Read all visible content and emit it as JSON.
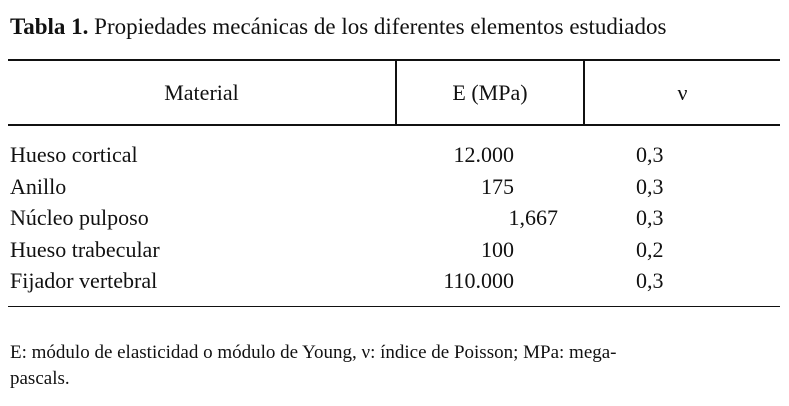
{
  "caption": {
    "label": "Tabla 1.",
    "text": "Propiedades mecánicas de los diferentes elementos estudiados"
  },
  "table": {
    "headers": [
      "Material",
      "E (MPa)",
      "ν"
    ],
    "rows": [
      {
        "material": "Hueso cortical",
        "e": "12.000",
        "nu": "0,3"
      },
      {
        "material": "Anillo",
        "e": "175",
        "nu": "0,3"
      },
      {
        "material": "Núcleo pulposo",
        "e": "1,667",
        "nu": "0,3"
      },
      {
        "material": "Hueso trabecular",
        "e": "100",
        "nu": "0,2"
      },
      {
        "material": "Fijador vertebral",
        "e": "110.000",
        "nu": "0,3"
      }
    ]
  },
  "footnote": {
    "line1": "E: módulo de elasticidad o módulo de Young, ν: índice de Poisson; MPa: mega-",
    "line2": "pascals."
  }
}
